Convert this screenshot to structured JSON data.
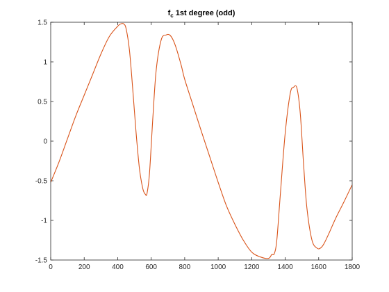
{
  "chart_data": {
    "type": "line",
    "title": {
      "prefix": "f",
      "subscript": "c",
      "suffix": " 1st degree (odd)"
    },
    "xlabel": "",
    "ylabel": "",
    "xlim": [
      0,
      1800
    ],
    "ylim": [
      -1.5,
      1.5
    ],
    "x_ticks": [
      0,
      200,
      400,
      600,
      800,
      1000,
      1200,
      1400,
      1600,
      1800
    ],
    "x_tick_labels": [
      "0",
      "200",
      "400",
      "600",
      "800",
      "1000",
      "1200",
      "1400",
      "1600",
      "1800"
    ],
    "y_ticks": [
      -1.5,
      -1,
      -0.5,
      0,
      0.5,
      1,
      1.5
    ],
    "y_tick_labels": [
      "-1.5",
      "-1",
      "-0.5",
      "0",
      "0.5",
      "1",
      "1.5"
    ],
    "grid": false,
    "series": [
      {
        "color": "#d95319",
        "x": [
          0,
          50,
          100,
          150,
          200,
          250,
          300,
          350,
          400,
          420,
          435,
          450,
          470,
          490,
          510,
          530,
          550,
          565,
          575,
          590,
          610,
          630,
          660,
          690,
          710,
          730,
          750,
          780,
          800,
          850,
          900,
          950,
          1000,
          1050,
          1100,
          1150,
          1200,
          1250,
          1300,
          1320,
          1335,
          1350,
          1370,
          1400,
          1430,
          1450,
          1470,
          1490,
          1510,
          1530,
          1560,
          1590,
          1610,
          1630,
          1660,
          1700,
          1750,
          1800
        ],
        "y": [
          -0.52,
          -0.26,
          0.03,
          0.32,
          0.58,
          0.84,
          1.1,
          1.32,
          1.45,
          1.48,
          1.48,
          1.42,
          1.15,
          0.65,
          0.1,
          -0.35,
          -0.6,
          -0.67,
          -0.66,
          -0.4,
          0.3,
          0.9,
          1.28,
          1.34,
          1.34,
          1.28,
          1.17,
          0.95,
          0.78,
          0.45,
          0.12,
          -0.2,
          -0.52,
          -0.82,
          -1.05,
          -1.25,
          -1.4,
          -1.46,
          -1.48,
          -1.43,
          -1.42,
          -1.25,
          -0.7,
          0.1,
          0.6,
          0.68,
          0.67,
          0.35,
          -0.3,
          -0.85,
          -1.25,
          -1.35,
          -1.35,
          -1.3,
          -1.17,
          -0.98,
          -0.77,
          -0.55
        ]
      }
    ]
  }
}
